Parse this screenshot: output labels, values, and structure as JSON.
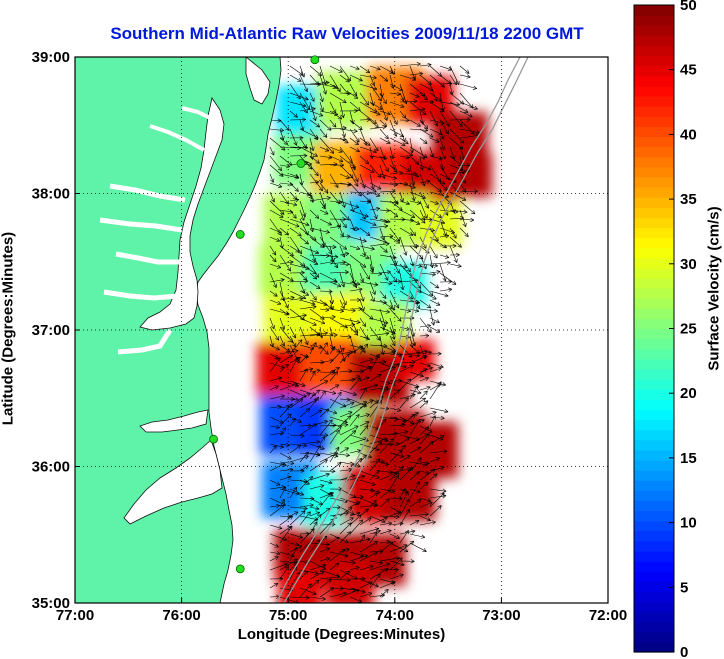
{
  "title": "Southern Mid-Atlantic Raw Velocities 2009/11/18 2200 GMT",
  "map": {
    "xlabel": "Longitude (Degrees:Minutes)",
    "ylabel": "Latitude (Degrees:Minutes)",
    "lon_range": [
      -77,
      -72
    ],
    "lat_range": [
      35,
      39
    ],
    "x_ticks": [
      {
        "value": -77,
        "label": "77:00"
      },
      {
        "value": -76,
        "label": "76:00"
      },
      {
        "value": -75,
        "label": "75:00"
      },
      {
        "value": -74,
        "label": "74:00"
      },
      {
        "value": -73,
        "label": "73:00"
      },
      {
        "value": -72,
        "label": "72:00"
      }
    ],
    "y_ticks": [
      {
        "value": 35,
        "label": "35:00"
      },
      {
        "value": 36,
        "label": "36:00"
      },
      {
        "value": 37,
        "label": "37:00"
      },
      {
        "value": 38,
        "label": "38:00"
      },
      {
        "value": 39,
        "label": "39:00"
      }
    ],
    "grid": true,
    "land_color": "#5ff3a9",
    "water_color": "#ffffff",
    "station_color": "#22dd22"
  },
  "colorbar": {
    "label": "Surface Velocity (cm/s)",
    "range": [
      0,
      50
    ],
    "ticks": [
      {
        "value": 0,
        "label": "0"
      },
      {
        "value": 5,
        "label": "5"
      },
      {
        "value": 10,
        "label": "10"
      },
      {
        "value": 15,
        "label": "15"
      },
      {
        "value": 20,
        "label": "20"
      },
      {
        "value": 25,
        "label": "25"
      },
      {
        "value": 30,
        "label": "30"
      },
      {
        "value": 35,
        "label": "35"
      },
      {
        "value": 40,
        "label": "40"
      },
      {
        "value": 45,
        "label": "45"
      },
      {
        "value": 50,
        "label": "50"
      }
    ],
    "colormap": "jet"
  },
  "stations": [
    {
      "lon": -74.75,
      "lat": 38.98
    },
    {
      "lon": -74.88,
      "lat": 38.22
    },
    {
      "lon": -75.45,
      "lat": 37.7
    },
    {
      "lon": -75.7,
      "lat": 36.2
    },
    {
      "lon": -75.45,
      "lat": 35.25
    }
  ]
}
